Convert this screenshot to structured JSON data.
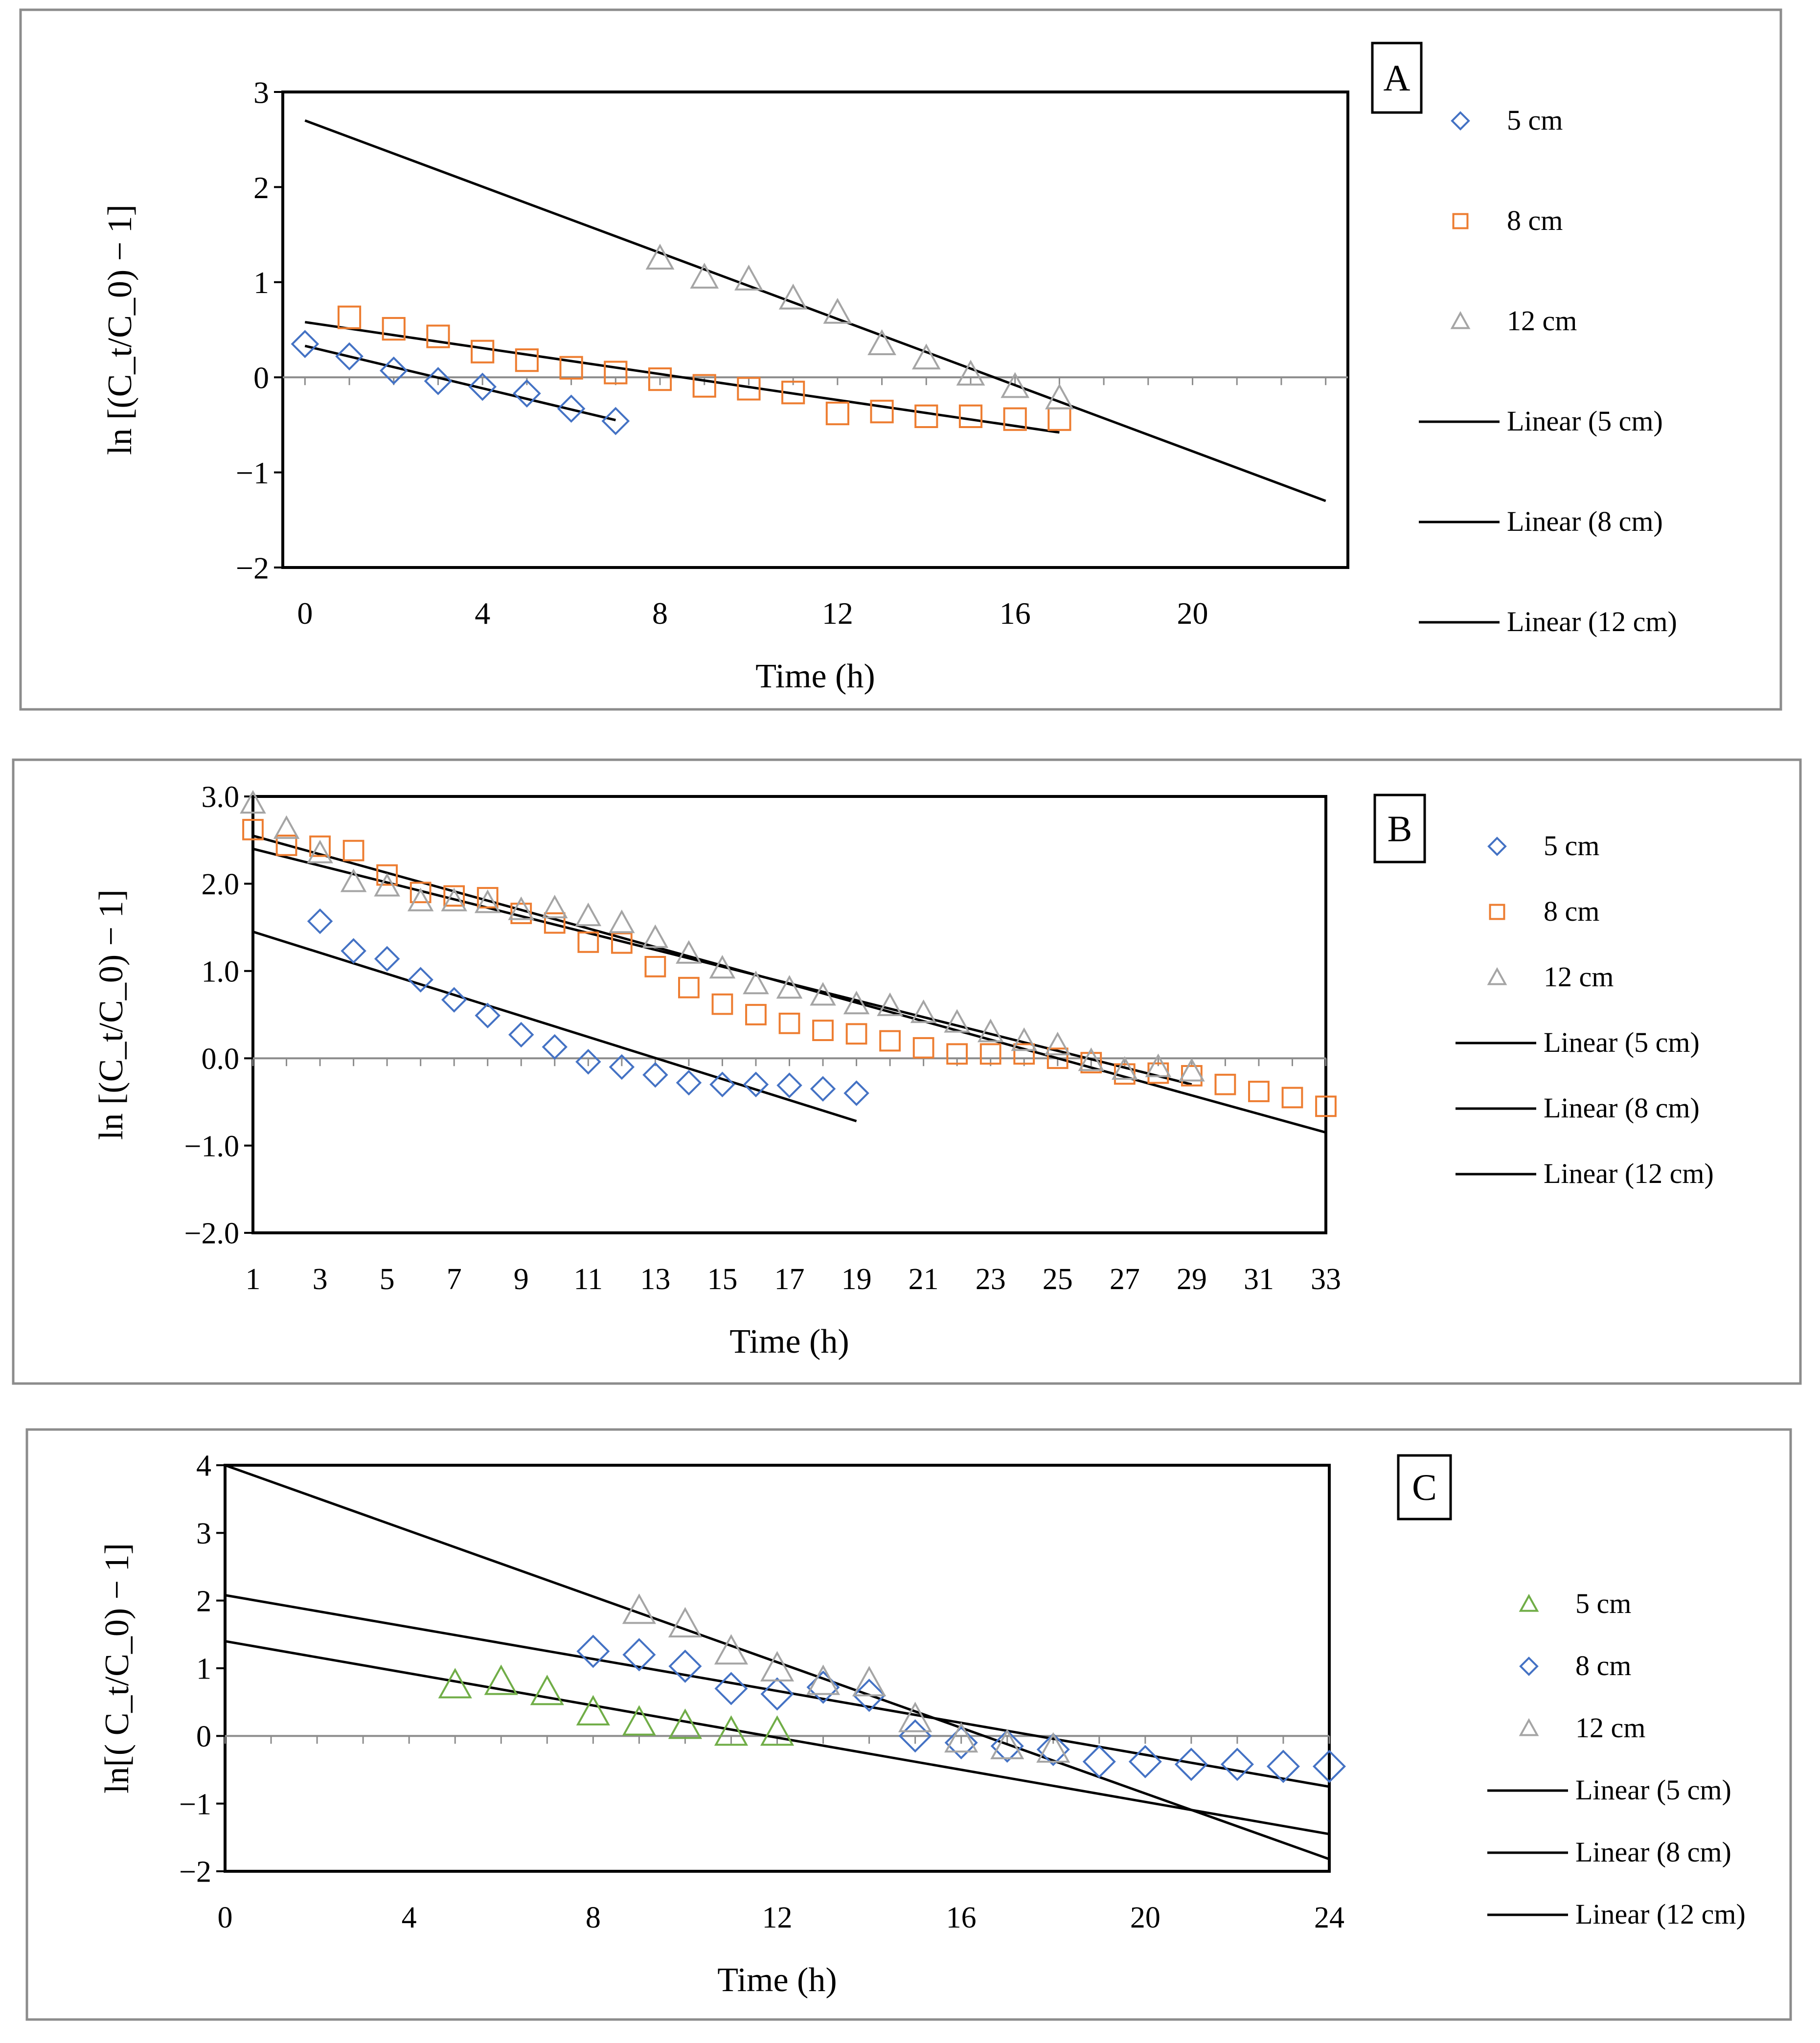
{
  "chart_data": [
    {
      "type": "scatter",
      "panel_label": "A",
      "xlabel": "Time (h)",
      "ylabel": "ln [(C_t/C_0) − 1]",
      "xlim": [
        -0.5,
        23.5
      ],
      "ylim": [
        -2,
        3
      ],
      "xticks": [
        0,
        4,
        8,
        12,
        16,
        20
      ],
      "yticks": [
        3,
        2,
        1,
        0,
        -1,
        -2
      ],
      "ytick_labels": [
        "3",
        "2",
        "1",
        "0",
        "−1",
        "−2"
      ],
      "grid": false,
      "legend_position": "right",
      "series": [
        {
          "name": "5 cm",
          "marker": "diamond",
          "color": "#4472c4",
          "x": [
            0,
            1,
            2,
            3,
            4,
            5,
            6,
            7
          ],
          "y": [
            0.35,
            0.22,
            0.07,
            -0.04,
            -0.1,
            -0.17,
            -0.33,
            -0.46
          ]
        },
        {
          "name": "8 cm",
          "marker": "square",
          "color": "#ed7d31",
          "x": [
            1,
            2,
            3,
            4,
            5,
            6,
            7,
            8,
            9,
            10,
            11,
            12,
            13,
            14,
            15,
            16,
            17
          ],
          "y": [
            0.63,
            0.51,
            0.43,
            0.27,
            0.18,
            0.1,
            0.05,
            -0.02,
            -0.09,
            -0.12,
            -0.16,
            -0.38,
            -0.36,
            -0.41,
            -0.41,
            -0.44,
            -0.44
          ]
        },
        {
          "name": "12 cm",
          "marker": "triangle",
          "color": "#a5a5a5",
          "x": [
            8,
            9,
            10,
            11,
            12,
            13,
            14,
            15,
            16,
            17
          ],
          "y": [
            1.25,
            1.05,
            1.03,
            0.83,
            0.68,
            0.35,
            0.2,
            0.03,
            -0.1,
            -0.22
          ]
        }
      ],
      "trendlines": [
        {
          "name": "Linear (5 cm)",
          "x": [
            0,
            7
          ],
          "y": [
            0.33,
            -0.45
          ]
        },
        {
          "name": "Linear (8 cm)",
          "x": [
            0,
            17
          ],
          "y": [
            0.58,
            -0.58
          ]
        },
        {
          "name": "Linear (12 cm)",
          "x": [
            0,
            23
          ],
          "y": [
            2.7,
            -1.3
          ]
        }
      ]
    },
    {
      "type": "scatter",
      "panel_label": "B",
      "xlabel": "Time (h)",
      "ylabel": "ln [(C_t/C_0) − 1]",
      "xlim": [
        1,
        33
      ],
      "ylim": [
        -2,
        3
      ],
      "xticks": [
        1,
        3,
        5,
        7,
        9,
        11,
        13,
        15,
        17,
        19,
        21,
        23,
        25,
        27,
        29,
        31,
        33
      ],
      "yticks": [
        3,
        2,
        1,
        0,
        -1,
        -2
      ],
      "ytick_labels": [
        "3.0",
        "2.0",
        "1.0",
        "0.0",
        "−1.0",
        "−2.0"
      ],
      "grid": false,
      "legend_position": "right",
      "series": [
        {
          "name": "5 cm",
          "marker": "diamond",
          "color": "#4472c4",
          "x": [
            3,
            4,
            5,
            6,
            7,
            8,
            9,
            10,
            11,
            12,
            13,
            14,
            15,
            16,
            17,
            18,
            19
          ],
          "y": [
            1.57,
            1.23,
            1.14,
            0.9,
            0.67,
            0.49,
            0.27,
            0.13,
            -0.04,
            -0.1,
            -0.19,
            -0.28,
            -0.3,
            -0.3,
            -0.31,
            -0.35,
            -0.4
          ]
        },
        {
          "name": "8 cm",
          "marker": "square",
          "color": "#ed7d31",
          "x": [
            1,
            2,
            3,
            4,
            5,
            6,
            7,
            8,
            9,
            10,
            11,
            12,
            13,
            14,
            15,
            16,
            17,
            18,
            19,
            20,
            21,
            22,
            23,
            24,
            25,
            26,
            27,
            28,
            29,
            30,
            31,
            32,
            33
          ],
          "y": [
            2.62,
            2.44,
            2.43,
            2.38,
            2.1,
            1.9,
            1.86,
            1.84,
            1.66,
            1.55,
            1.33,
            1.32,
            1.05,
            0.81,
            0.62,
            0.5,
            0.4,
            0.32,
            0.28,
            0.2,
            0.12,
            0.05,
            0.05,
            0.05,
            0.0,
            -0.05,
            -0.18,
            -0.17,
            -0.2,
            -0.3,
            -0.38,
            -0.45,
            -0.55
          ]
        },
        {
          "name": "12 cm",
          "marker": "triangle",
          "color": "#a5a5a5",
          "x": [
            1,
            2,
            3,
            4,
            5,
            6,
            7,
            8,
            9,
            10,
            11,
            12,
            13,
            14,
            15,
            16,
            17,
            18,
            19,
            20,
            21,
            22,
            23,
            24,
            25,
            26,
            27,
            28,
            29
          ],
          "y": [
            2.92,
            2.63,
            2.35,
            2.02,
            1.97,
            1.8,
            1.8,
            1.78,
            1.7,
            1.72,
            1.63,
            1.55,
            1.38,
            1.2,
            1.03,
            0.85,
            0.8,
            0.72,
            0.62,
            0.6,
            0.52,
            0.41,
            0.3,
            0.2,
            0.15,
            -0.03,
            -0.13,
            -0.1,
            -0.15
          ]
        }
      ],
      "trendlines": [
        {
          "name": "Linear (5 cm)",
          "x": [
            1,
            19
          ],
          "y": [
            1.45,
            -0.72
          ]
        },
        {
          "name": "Linear (8 cm)",
          "x": [
            1,
            33
          ],
          "y": [
            2.55,
            -0.85
          ]
        },
        {
          "name": "Linear (12 cm)",
          "x": [
            1,
            29
          ],
          "y": [
            2.4,
            -0.3
          ]
        }
      ]
    },
    {
      "type": "scatter",
      "panel_label": "C",
      "xlabel": "Time (h)",
      "ylabel": "ln[( C_t/C_0) − 1]",
      "xlim": [
        0,
        24
      ],
      "ylim": [
        -2,
        4
      ],
      "xticks": [
        0,
        4,
        8,
        12,
        16,
        20,
        24
      ],
      "yticks": [
        4,
        3,
        2,
        1,
        0,
        -1,
        -2
      ],
      "ytick_labels": [
        "4",
        "3",
        "2",
        "1",
        "0",
        "−1",
        "−2"
      ],
      "grid": false,
      "legend_position": "right",
      "series": [
        {
          "name": "5 cm",
          "marker": "triangle",
          "color": "#70ad47",
          "x": [
            5,
            6,
            7,
            8,
            9,
            10,
            11,
            12
          ],
          "y": [
            0.75,
            0.8,
            0.65,
            0.35,
            0.2,
            0.15,
            0.05,
            0.05
          ]
        },
        {
          "name": "8 cm",
          "marker": "diamond",
          "color": "#4472c4",
          "x": [
            8,
            9,
            10,
            11,
            12,
            13,
            14,
            15,
            16,
            17,
            18,
            19,
            20,
            21,
            22,
            23,
            24
          ],
          "y": [
            1.25,
            1.2,
            1.03,
            0.7,
            0.62,
            0.72,
            0.6,
            0.0,
            -0.1,
            -0.15,
            -0.2,
            -0.38,
            -0.38,
            -0.42,
            -0.42,
            -0.45,
            -0.45
          ]
        },
        {
          "name": "12 cm",
          "marker": "triangle",
          "color": "#a5a5a5",
          "x": [
            9,
            10,
            11,
            12,
            13,
            14,
            15,
            16,
            17,
            18
          ],
          "y": [
            1.85,
            1.65,
            1.25,
            1.0,
            0.8,
            0.78,
            0.25,
            -0.05,
            -0.15,
            -0.2
          ]
        }
      ],
      "trendlines": [
        {
          "name": "Linear (5 cm)",
          "x": [
            0,
            24
          ],
          "y": [
            1.4,
            -1.45
          ]
        },
        {
          "name": "Linear (8 cm)",
          "x": [
            0,
            24
          ],
          "y": [
            2.08,
            -0.75
          ]
        },
        {
          "name": "Linear (12 cm)",
          "x": [
            0,
            24
          ],
          "y": [
            4.0,
            -1.82
          ]
        }
      ]
    }
  ]
}
